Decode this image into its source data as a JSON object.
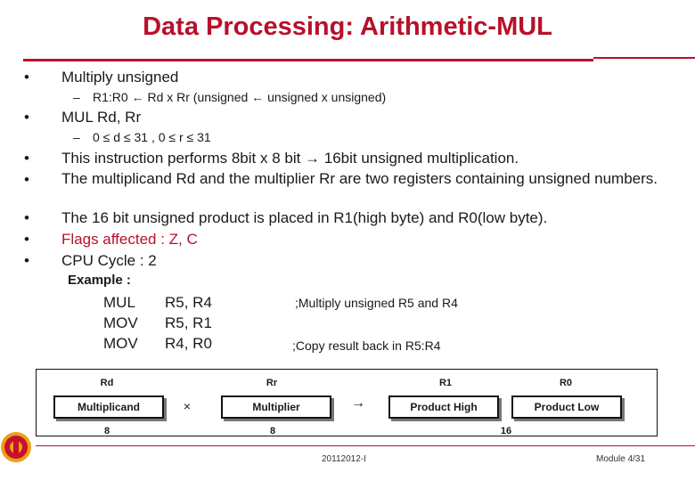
{
  "title": "Data Processing: Arithmetic-MUL",
  "bullets": [
    {
      "text": "Multiply unsigned",
      "sub": "R1:R0 ← Rd x Rr (unsigned ← unsigned x unsigned)"
    },
    {
      "text": "MUL Rd, Rr",
      "sub": "0 ≤ d ≤ 31 , 0 ≤ r ≤ 31"
    },
    {
      "text": "This instruction performs 8bit x 8 bit → 16bit unsigned multiplication."
    },
    {
      "text": "The multiplicand Rd and the multiplier Rr are two registers containing unsigned numbers."
    },
    {
      "text": "The 16 bit unsigned product is placed in R1(high byte) and R0(low byte)."
    },
    {
      "text": "Flags affected : Z, C"
    },
    {
      "text": "CPU Cycle : 2"
    }
  ],
  "example": {
    "label": "Example :",
    "lines": [
      {
        "op": "MUL",
        "args": "R5, R4",
        "comment": ";Multiply unsigned R5 and R4"
      },
      {
        "op": "MOV",
        "args": "R5,  R1",
        "comment": ""
      },
      {
        "op": "MOV",
        "args": "R4, R0",
        "comment": ";Copy result back in R5:R4"
      }
    ]
  },
  "diagram": {
    "rd": "Rd",
    "rr": "Rr",
    "r1": "R1",
    "r0": "R0",
    "multiplicand": "Multiplicand",
    "multiplier": "Multiplier",
    "product_high": "Product High",
    "product_low": "Product Low",
    "times": "×",
    "arrow": "→",
    "bits_rd": "8",
    "bits_rr": "8",
    "bits_product": "16"
  },
  "footer": {
    "center": "20112012-I",
    "right": "Module 4/31"
  },
  "colors": {
    "accent": "#b8102a",
    "logo": "#c8102e",
    "logo_gold": "#e8a317"
  },
  "icons": {
    "logo": "institute-logo"
  }
}
